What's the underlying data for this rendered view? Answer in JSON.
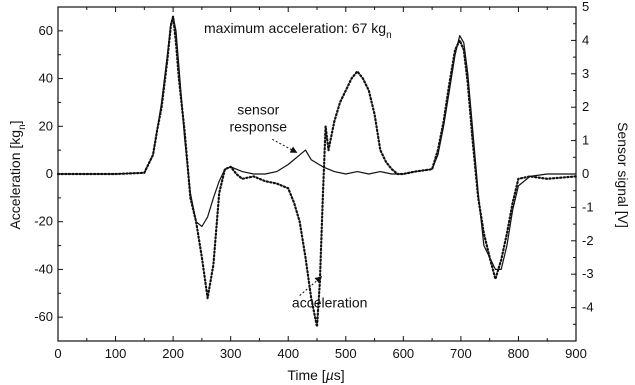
{
  "chart_data": {
    "type": "line",
    "title": "maximum acceleration: 67 kgn",
    "title_parts": {
      "main": "maximum acceleration: 67 kg",
      "sub": "n"
    },
    "xlabel": "Time [µs]",
    "xlabel_parts": {
      "pre": "Time [",
      "mu": "µ",
      "post": "s]"
    },
    "ylabel": "Acceleration [kgn]",
    "ylabel_parts": {
      "main": "Acceleration [kg",
      "sub": "n",
      "end": "]"
    },
    "y2label": "Sensor signal [V]",
    "xlim": [
      0,
      900
    ],
    "ylim": [
      -70,
      70
    ],
    "y2lim": [
      -5,
      5
    ],
    "xticks": [
      0,
      100,
      200,
      300,
      400,
      500,
      600,
      700,
      800,
      900
    ],
    "yticks": [
      -60,
      -40,
      -20,
      0,
      20,
      40,
      60
    ],
    "y2ticks": [
      -4,
      -3,
      -2,
      -1,
      0,
      1,
      2,
      3,
      4,
      5
    ],
    "grid": false,
    "series": [
      {
        "name": "sensor response",
        "axis": "left",
        "style": "solid",
        "x": [
          0,
          100,
          150,
          165,
          172,
          180,
          190,
          196,
          200,
          205,
          210,
          220,
          230,
          240,
          250,
          260,
          270,
          280,
          290,
          300,
          320,
          340,
          360,
          380,
          400,
          420,
          430,
          440,
          460,
          480,
          500,
          520,
          540,
          560,
          580,
          600,
          620,
          650,
          660,
          670,
          680,
          690,
          698,
          705,
          712,
          720,
          730,
          740,
          750,
          760,
          770,
          780,
          790,
          800,
          820,
          850,
          900
        ],
        "y": [
          0,
          0,
          0.5,
          8,
          18,
          30,
          50,
          63,
          66,
          60,
          45,
          15,
          -8,
          -20,
          -22,
          -18,
          -10,
          -3,
          2,
          3,
          1,
          0,
          0,
          1,
          4,
          8,
          10,
          6,
          3,
          1,
          0,
          1,
          0,
          1,
          0,
          0,
          1,
          2,
          8,
          20,
          35,
          50,
          58,
          55,
          42,
          20,
          -8,
          -30,
          -35,
          -40,
          -40,
          -30,
          -15,
          -5,
          -1,
          0,
          0
        ]
      },
      {
        "name": "acceleration",
        "axis": "left",
        "style": "dotted",
        "x": [
          0,
          100,
          150,
          165,
          172,
          180,
          190,
          196,
          200,
          205,
          210,
          220,
          230,
          240,
          250,
          260,
          270,
          280,
          290,
          300,
          310,
          320,
          340,
          360,
          380,
          400,
          410,
          420,
          430,
          440,
          450,
          455,
          460,
          465,
          470,
          480,
          490,
          500,
          510,
          520,
          530,
          540,
          550,
          560,
          570,
          580,
          590,
          600,
          620,
          650,
          660,
          670,
          680,
          690,
          698,
          705,
          712,
          720,
          730,
          740,
          750,
          760,
          770,
          780,
          790,
          800,
          820,
          850,
          900
        ],
        "y": [
          0,
          0,
          0.5,
          8,
          18,
          28,
          48,
          62,
          66,
          55,
          40,
          18,
          -10,
          -20,
          -35,
          -52,
          -38,
          -8,
          2,
          3,
          0,
          -2,
          -1,
          -3,
          -4,
          -6,
          -12,
          -20,
          -35,
          -52,
          -64,
          -45,
          -10,
          20,
          10,
          22,
          30,
          35,
          40,
          43,
          40,
          35,
          25,
          10,
          5,
          2,
          0,
          0,
          1,
          2,
          10,
          22,
          38,
          52,
          56,
          52,
          38,
          15,
          -10,
          -25,
          -35,
          -44,
          -36,
          -25,
          -12,
          -2,
          -1,
          -2,
          -1
        ]
      }
    ],
    "annotations": [
      {
        "text_lines": [
          "sensor",
          "response"
        ],
        "x": 348,
        "y": 25,
        "arrow_to": {
          "x": 415,
          "y": 9
        }
      },
      {
        "text_lines": [
          "acceleration"
        ],
        "x": 472,
        "y": -56,
        "arrow_to": {
          "x": 458,
          "y": -43
        }
      }
    ]
  }
}
